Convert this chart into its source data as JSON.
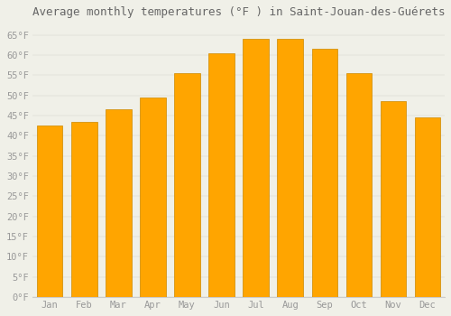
{
  "title": "Average monthly temperatures (°F ) in Saint-Jouan-des-Guérets",
  "months": [
    "Jan",
    "Feb",
    "Mar",
    "Apr",
    "May",
    "Jun",
    "Jul",
    "Aug",
    "Sep",
    "Oct",
    "Nov",
    "Dec"
  ],
  "values": [
    42.5,
    43.5,
    46.5,
    49.5,
    55.5,
    60.5,
    64.0,
    64.0,
    61.5,
    55.5,
    48.5,
    44.5
  ],
  "bar_color": "#FFA500",
  "bar_edge_color": "#CC8800",
  "background_color": "#F0F0E8",
  "grid_color": "#E8E8E0",
  "text_color": "#999999",
  "title_color": "#666666",
  "ylim": [
    0,
    68
  ],
  "yticks": [
    0,
    5,
    10,
    15,
    20,
    25,
    30,
    35,
    40,
    45,
    50,
    55,
    60,
    65
  ],
  "title_fontsize": 9,
  "tick_fontsize": 7.5,
  "font_family": "monospace"
}
